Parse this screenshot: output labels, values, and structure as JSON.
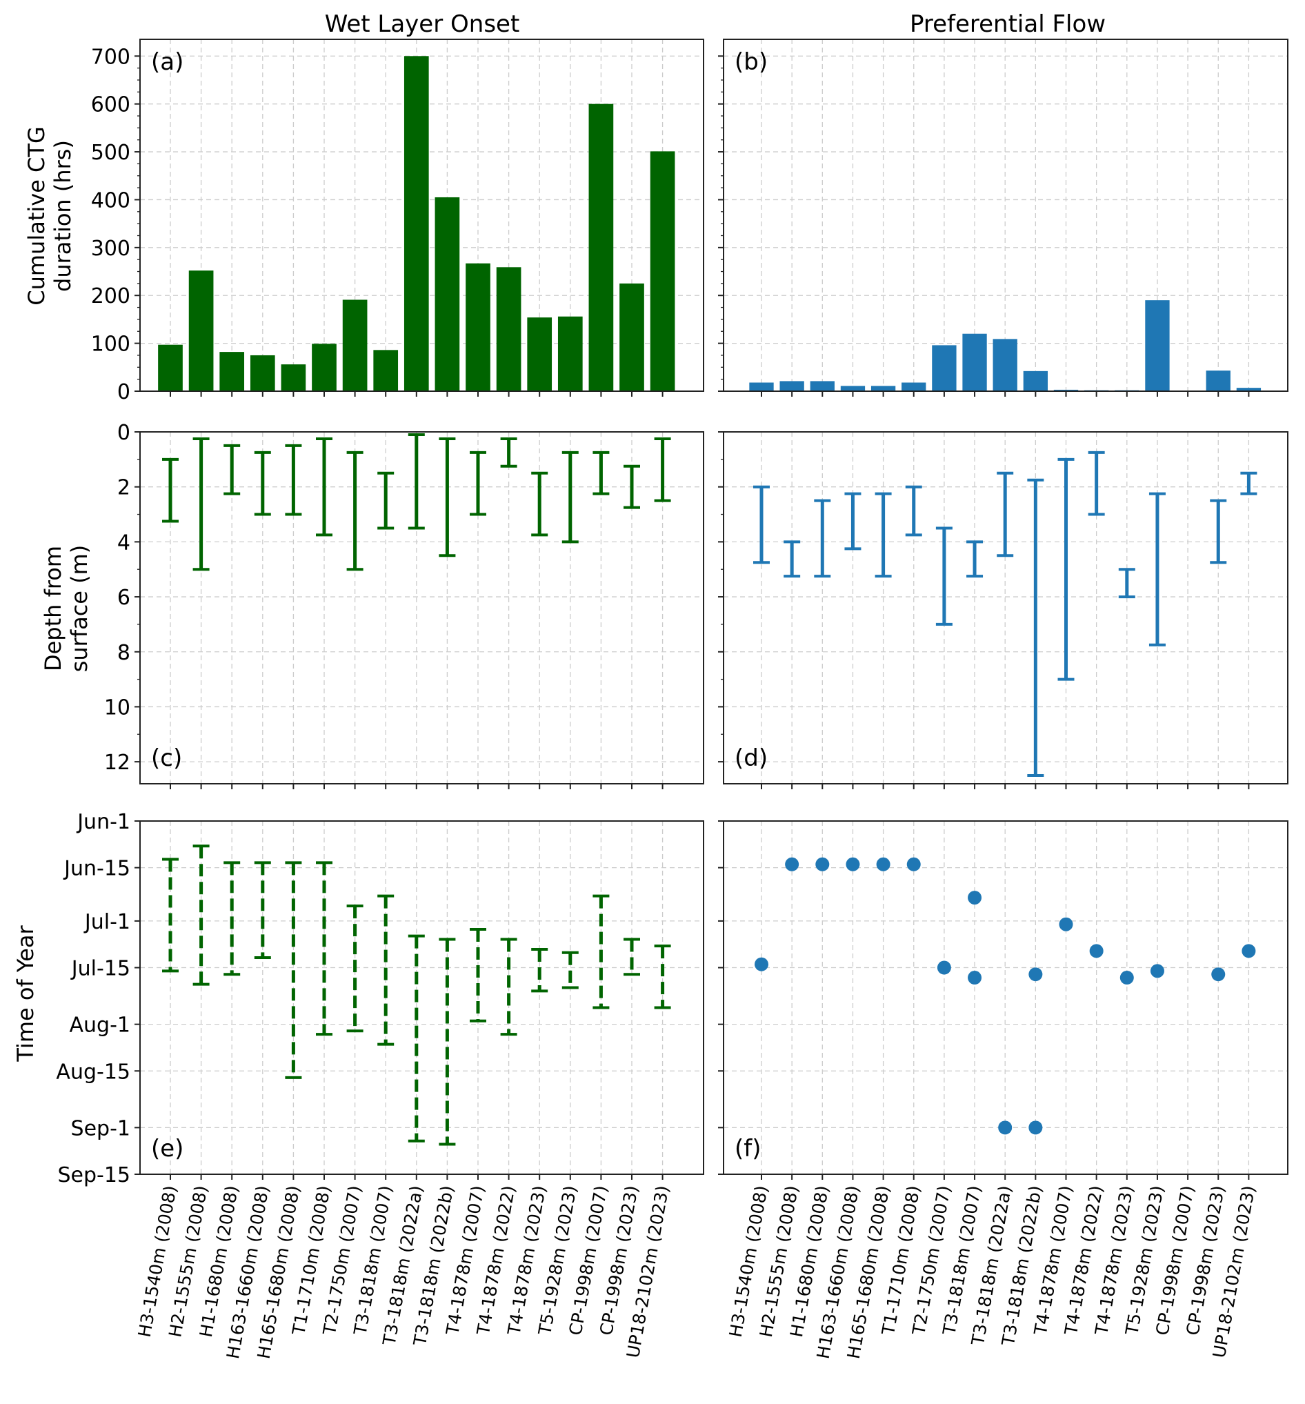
{
  "chart_data": {
    "type": "multi-panel",
    "sites": [
      "H3-1540m (2008)",
      "H2-1555m (2008)",
      "H1-1680m (2008)",
      "H163-1660m (2008)",
      "H165-1680m (2008)",
      "T1-1710m (2008)",
      "T2-1750m (2007)",
      "T3-1818m (2007)",
      "T3-1818m (2022a)",
      "T3-1818m (2022b)",
      "T4-1878m (2007)",
      "T4-1878m (2022)",
      "T4-1878m (2023)",
      "T5-1928m (2023)",
      "CP-1998m (2007)",
      "CP-1998m (2023)",
      "UP18-2102m (2023)"
    ],
    "column_titles": [
      "Wet Layer Onset",
      "Preferential Flow"
    ],
    "ylabels": {
      "top_line1": "Cumulative CTG",
      "top_line2": "duration (hrs)",
      "mid_line1": "Depth from",
      "mid_line2": "surface (m)",
      "bottom": "Time of Year"
    },
    "panels": [
      {
        "id": "a",
        "label": "(a)",
        "type": "bar",
        "color": "#006400",
        "ylim": [
          0,
          735
        ],
        "yticks": [
          0,
          100,
          200,
          300,
          400,
          500,
          600,
          700
        ],
        "values": [
          97,
          252,
          82,
          75,
          56,
          99,
          191,
          86,
          700,
          405,
          267,
          259,
          154,
          156,
          600,
          225,
          501
        ]
      },
      {
        "id": "b",
        "label": "(b)",
        "type": "bar",
        "color": "#1f77b4",
        "ylim": [
          0,
          735
        ],
        "values": [
          18,
          21,
          21,
          11,
          11,
          18,
          96,
          120,
          109,
          42,
          3,
          2,
          2,
          190,
          0,
          43,
          7
        ]
      },
      {
        "id": "c",
        "label": "(c)",
        "type": "range",
        "color": "#006400",
        "ylim": [
          12.8,
          0
        ],
        "yticks": [
          0,
          2,
          4,
          6,
          8,
          10,
          12
        ],
        "low": [
          1.0,
          0.25,
          0.5,
          0.75,
          0.5,
          0.25,
          0.75,
          1.5,
          0.1,
          0.25,
          0.75,
          0.25,
          1.5,
          0.75,
          0.75,
          1.25,
          0.25
        ],
        "high": [
          3.25,
          5.0,
          2.25,
          3.0,
          3.0,
          3.75,
          5.0,
          3.5,
          3.5,
          4.5,
          3.0,
          1.25,
          3.75,
          4.0,
          2.25,
          2.75,
          2.5
        ]
      },
      {
        "id": "d",
        "label": "(d)",
        "type": "range",
        "color": "#1f77b4",
        "ylim": [
          12.8,
          0
        ],
        "low": [
          2.0,
          4.0,
          2.5,
          2.25,
          2.25,
          2.0,
          3.5,
          4.0,
          1.5,
          1.75,
          1.0,
          0.75,
          5.0,
          2.25,
          null,
          2.5,
          1.5
        ],
        "high": [
          4.75,
          5.25,
          5.25,
          4.25,
          5.25,
          3.75,
          7.0,
          5.25,
          4.5,
          12.5,
          9.0,
          3.0,
          6.0,
          7.75,
          null,
          4.75,
          2.25
        ]
      },
      {
        "id": "e",
        "label": "(e)",
        "type": "range-dashed",
        "color": "#006400",
        "ylim": [
          152,
          258
        ],
        "yticks": [
          152,
          166,
          182,
          196,
          213,
          227,
          244,
          258
        ],
        "yticklabels": [
          "Jun-1",
          "Jun-15",
          "Jul-1",
          "Jul-15",
          "Aug-1",
          "Aug-15",
          "Sep-1",
          "Sep-15"
        ],
        "low": [
          163.5,
          159.5,
          164.5,
          164.5,
          164.5,
          164.5,
          177.5,
          174.5,
          186.5,
          187.5,
          184.5,
          187.5,
          190.5,
          191.5,
          174.5,
          187.5,
          189.5
        ],
        "high": [
          197,
          201,
          198,
          193,
          229,
          216,
          215,
          219,
          248,
          249,
          212,
          216,
          203,
          202,
          208,
          198,
          208
        ]
      },
      {
        "id": "f",
        "label": "(f)",
        "type": "scatter",
        "color": "#1f77b4",
        "ylim": [
          152,
          258
        ],
        "points": [
          [
            0,
            195
          ],
          [
            1,
            165
          ],
          [
            2,
            165
          ],
          [
            3,
            165
          ],
          [
            4,
            165
          ],
          [
            5,
            165
          ],
          [
            6,
            196
          ],
          [
            7,
            175
          ],
          [
            7,
            199
          ],
          [
            8,
            244
          ],
          [
            9,
            244
          ],
          [
            9,
            198
          ],
          [
            10,
            183
          ],
          [
            11,
            191
          ],
          [
            12,
            199
          ],
          [
            13,
            197
          ],
          [
            15,
            198
          ],
          [
            16,
            191
          ]
        ]
      }
    ]
  }
}
